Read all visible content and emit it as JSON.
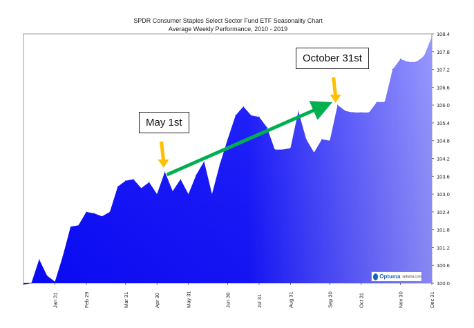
{
  "chart_data": {
    "type": "area",
    "title": "SPDR Consumer Staples Select Sector Fund ETF Seasonality Chart",
    "subtitle": "Average Weekly Performance, 2010 - 2019",
    "x_tick_labels": [
      "Jan 31",
      "Feb 29",
      "Mar 31",
      "Apr 30",
      "May 31",
      "Jun 30",
      "Jul 31",
      "Aug 31",
      "Sep 30",
      "Oct 31",
      "Nov 30",
      "Dec 31"
    ],
    "y_tick_labels": [
      "100.0",
      "100.6",
      "101.2",
      "101.8",
      "102.4",
      "103.0",
      "103.6",
      "104.2",
      "104.8",
      "105.4",
      "106.0",
      "106.6",
      "107.2",
      "107.8",
      "108.4"
    ],
    "ylim": [
      100.0,
      108.4
    ],
    "week": [
      1,
      2,
      3,
      4,
      5,
      6,
      7,
      8,
      9,
      10,
      11,
      12,
      13,
      14,
      15,
      16,
      17,
      18,
      19,
      20,
      21,
      22,
      23,
      24,
      25,
      26,
      27,
      28,
      29,
      30,
      31,
      32,
      33,
      34,
      35,
      36,
      37,
      38,
      39,
      40,
      41,
      42,
      43,
      44,
      45,
      46,
      47,
      48,
      49,
      50,
      51,
      52,
      53
    ],
    "values": [
      99.95,
      100.0,
      100.8,
      100.25,
      100.05,
      100.9,
      101.9,
      101.95,
      102.4,
      102.35,
      102.25,
      102.4,
      103.25,
      103.45,
      103.5,
      103.2,
      103.4,
      103.0,
      103.75,
      103.1,
      103.5,
      103.0,
      103.65,
      104.1,
      103.0,
      104.0,
      104.85,
      105.65,
      105.95,
      105.65,
      105.6,
      105.25,
      104.5,
      104.5,
      104.55,
      105.8,
      104.85,
      104.4,
      104.85,
      104.8,
      106.0,
      105.8,
      105.75,
      105.75,
      105.75,
      106.1,
      106.1,
      107.2,
      107.55,
      107.45,
      107.45,
      107.65,
      108.3
    ],
    "grid": false,
    "legend": "none",
    "fill_colors": [
      "#0a0aff",
      "#8f8fff"
    ],
    "annotations": [
      {
        "text": "May 1st",
        "arrow_color": "#ffc000"
      },
      {
        "text": "October 31st",
        "arrow_color": "#ffc000"
      }
    ],
    "trend_arrow_color": "#00b050"
  },
  "branding": {
    "logo_text": "Optuma",
    "logo_site": "optuma.com"
  }
}
